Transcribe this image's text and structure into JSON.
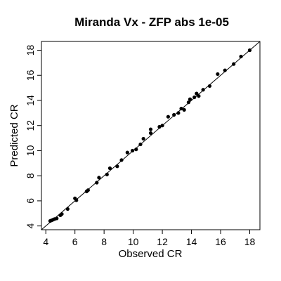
{
  "chart_data": {
    "type": "scatter",
    "title": "Miranda Vx  -  ZFP abs 1e-05",
    "xlabel": "Observed CR",
    "ylabel": "Predicted CR",
    "xlim": [
      3.7,
      18.7
    ],
    "ylim": [
      3.7,
      18.7
    ],
    "x_ticks": [
      4,
      6,
      8,
      10,
      12,
      14,
      16,
      18
    ],
    "y_ticks": [
      4,
      6,
      8,
      10,
      12,
      14,
      16,
      18
    ],
    "reference_line": "y = x",
    "grid": false,
    "legend": "none",
    "point_color": "#000000",
    "points": [
      {
        "x": 4.3,
        "y": 4.4
      },
      {
        "x": 4.4,
        "y": 4.45
      },
      {
        "x": 4.5,
        "y": 4.5
      },
      {
        "x": 4.6,
        "y": 4.55
      },
      {
        "x": 4.75,
        "y": 4.6
      },
      {
        "x": 5.0,
        "y": 4.85
      },
      {
        "x": 5.1,
        "y": 4.95
      },
      {
        "x": 5.5,
        "y": 5.35
      },
      {
        "x": 6.0,
        "y": 6.2
      },
      {
        "x": 6.1,
        "y": 6.05
      },
      {
        "x": 6.8,
        "y": 6.75
      },
      {
        "x": 6.9,
        "y": 6.85
      },
      {
        "x": 7.5,
        "y": 7.45
      },
      {
        "x": 7.65,
        "y": 7.85
      },
      {
        "x": 8.2,
        "y": 8.1
      },
      {
        "x": 8.4,
        "y": 8.6
      },
      {
        "x": 8.9,
        "y": 8.75
      },
      {
        "x": 9.2,
        "y": 9.25
      },
      {
        "x": 9.6,
        "y": 9.85
      },
      {
        "x": 9.95,
        "y": 10.0
      },
      {
        "x": 10.2,
        "y": 10.1
      },
      {
        "x": 10.5,
        "y": 10.5
      },
      {
        "x": 10.7,
        "y": 10.95
      },
      {
        "x": 11.2,
        "y": 11.4
      },
      {
        "x": 11.2,
        "y": 11.7
      },
      {
        "x": 11.8,
        "y": 11.9
      },
      {
        "x": 12.0,
        "y": 12.0
      },
      {
        "x": 12.4,
        "y": 12.7
      },
      {
        "x": 12.8,
        "y": 12.85
      },
      {
        "x": 13.1,
        "y": 13.0
      },
      {
        "x": 13.3,
        "y": 13.35
      },
      {
        "x": 13.5,
        "y": 13.25
      },
      {
        "x": 13.8,
        "y": 13.85
      },
      {
        "x": 13.9,
        "y": 14.1
      },
      {
        "x": 14.2,
        "y": 14.25
      },
      {
        "x": 14.35,
        "y": 14.55
      },
      {
        "x": 14.5,
        "y": 14.35
      },
      {
        "x": 14.8,
        "y": 14.85
      },
      {
        "x": 15.25,
        "y": 15.15
      },
      {
        "x": 15.8,
        "y": 16.1
      },
      {
        "x": 16.3,
        "y": 16.4
      },
      {
        "x": 16.9,
        "y": 16.9
      },
      {
        "x": 17.4,
        "y": 17.5
      },
      {
        "x": 18.0,
        "y": 18.0
      }
    ]
  }
}
